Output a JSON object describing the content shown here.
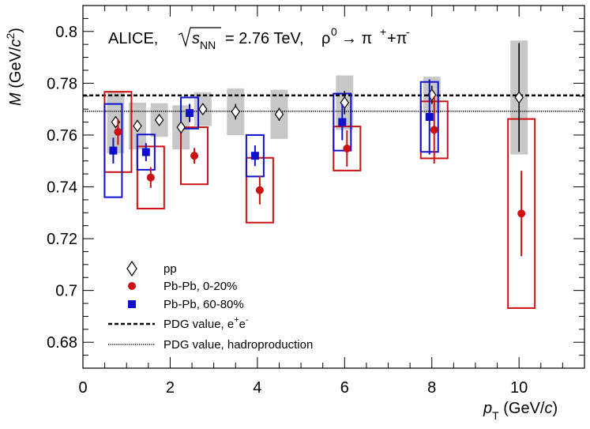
{
  "chart_data": {
    "type": "scatter",
    "xlabel": "p_T (GeV/c)",
    "ylabel": "M (GeV/c^2)",
    "xlim": [
      0,
      11.5
    ],
    "ylim": [
      0.67,
      0.81
    ],
    "x_ticks": [
      "0",
      "2",
      "4",
      "6",
      "8",
      "10"
    ],
    "y_ticks": [
      "0.68",
      "0.7",
      "0.72",
      "0.74",
      "0.76",
      "0.78",
      "0.8"
    ],
    "header": {
      "experiment": "ALICE,",
      "sqrt_s": "s",
      "sqrt_s_sub": "NN",
      "energy": "= 2.76 TeV,",
      "rho": "ρ",
      "rho_sup": "0",
      "arrow": "→ π",
      "pi_plus_sup": "+",
      "plus": "+π",
      "pi_minus_sup": "-"
    },
    "reference_lines": [
      {
        "name": "PDG value, e+e-",
        "y": 0.7753,
        "style": "dashed"
      },
      {
        "name": "PDG value, hadroproduction",
        "y": 0.7692,
        "style": "dotted"
      }
    ],
    "series": [
      {
        "name": "pp",
        "marker": "open-diamond",
        "color": "#000000",
        "syst_fill": "#c8c8c8",
        "points": [
          {
            "x": 0.75,
            "y": 0.765,
            "stat": 0.002,
            "syst": 0.012
          },
          {
            "x": 1.25,
            "y": 0.7635,
            "stat": 0.0015,
            "syst": 0.009
          },
          {
            "x": 1.75,
            "y": 0.7658,
            "stat": 0.0015,
            "syst": 0.0065
          },
          {
            "x": 2.25,
            "y": 0.763,
            "stat": 0.0015,
            "syst": 0.0085
          },
          {
            "x": 2.75,
            "y": 0.77,
            "stat": 0.0015,
            "syst": 0.0065
          },
          {
            "x": 3.5,
            "y": 0.769,
            "stat": 0.003,
            "syst": 0.009
          },
          {
            "x": 4.5,
            "y": 0.768,
            "stat": 0.0025,
            "syst": 0.0095
          },
          {
            "x": 6.0,
            "y": 0.7725,
            "stat": 0.0045,
            "syst": 0.0105
          },
          {
            "x": 8.0,
            "y": 0.7755,
            "stat": 0.0035,
            "syst": 0.007
          },
          {
            "x": 10.0,
            "y": 0.7745,
            "stat": 0.021,
            "syst": 0.022
          }
        ]
      },
      {
        "name": "Pb-Pb, 0-20%",
        "marker": "filled-circle",
        "color": "#cc1111",
        "points": [
          {
            "x": 0.75,
            "y": 0.7612,
            "stat": 0.005,
            "syst": 0.0155
          },
          {
            "x": 1.5,
            "y": 0.7436,
            "stat": 0.004,
            "syst": 0.012
          },
          {
            "x": 2.5,
            "y": 0.752,
            "stat": 0.003,
            "syst": 0.011
          },
          {
            "x": 4.0,
            "y": 0.7387,
            "stat": 0.0055,
            "syst": 0.0125
          },
          {
            "x": 6.0,
            "y": 0.7548,
            "stat": 0.007,
            "syst": 0.0085
          },
          {
            "x": 8.0,
            "y": 0.762,
            "stat": 0.013,
            "syst": 0.011
          },
          {
            "x": 10.0,
            "y": 0.7297,
            "stat": 0.0165,
            "syst": 0.0365
          }
        ]
      },
      {
        "name": "Pb-Pb, 60-80%",
        "marker": "filled-square",
        "color": "#1010cc",
        "points": [
          {
            "x": 0.75,
            "y": 0.754,
            "stat": 0.005,
            "syst": 0.018
          },
          {
            "x": 1.5,
            "y": 0.7534,
            "stat": 0.0035,
            "syst": 0.0068
          },
          {
            "x": 2.5,
            "y": 0.7685,
            "stat": 0.0035,
            "syst": 0.006
          },
          {
            "x": 4.0,
            "y": 0.752,
            "stat": 0.004,
            "syst": 0.008
          },
          {
            "x": 6.0,
            "y": 0.765,
            "stat": 0.007,
            "syst": 0.011
          },
          {
            "x": 8.0,
            "y": 0.767,
            "stat": 0.0145,
            "syst": 0.0135
          }
        ]
      }
    ]
  },
  "legend": {
    "items": [
      {
        "label": "pp"
      },
      {
        "label": "Pb-Pb, 0-20%"
      },
      {
        "label": "Pb-Pb, 60-80%"
      },
      {
        "label": "PDG value, e",
        "sup1": "+",
        "mid": "e",
        "sup2": "-"
      },
      {
        "label": "PDG value, hadroproduction"
      }
    ]
  },
  "axis_titles": {
    "x_main": "p",
    "x_sub": "T",
    "x_unit_open": " (GeV/",
    "x_unit_c": "c",
    "x_unit_close": ")",
    "y_main": "M",
    "y_unit_open": " (GeV/",
    "y_unit_c": "c",
    "y_unit_sup": "2",
    "y_unit_close": ")"
  }
}
